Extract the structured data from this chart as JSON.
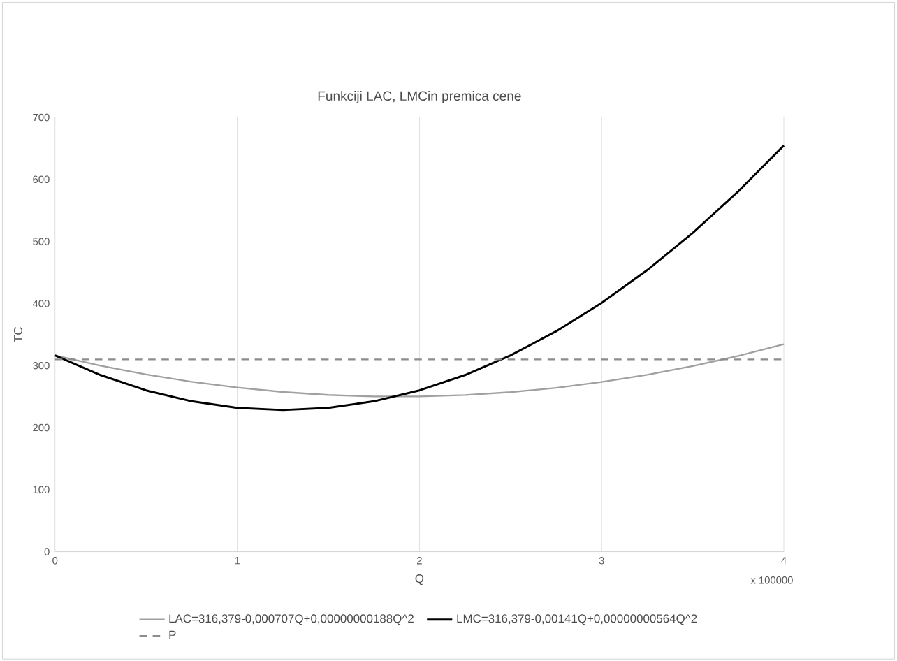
{
  "chart_data": {
    "type": "line",
    "title": "Funkciji LAC, LMCin premica cene",
    "xlabel": "Q",
    "ylabel": "TC",
    "annotations": [
      "x 100000"
    ],
    "xlim": [
      0,
      4
    ],
    "xticks": [
      0,
      1,
      2,
      3,
      4
    ],
    "ylim": [
      0,
      700
    ],
    "yticks": [
      0,
      100,
      200,
      300,
      400,
      500,
      600,
      700
    ],
    "grid": "x",
    "legend": "bottom",
    "marker": "none",
    "series": [
      {
        "name": "LAC=316,379-0,000707Q+0,00000000188Q^2",
        "color": "#a0a0a0",
        "line_style": "solid",
        "x": [
          0,
          0.25,
          0.5,
          0.75,
          1,
          1.25,
          1.5,
          1.75,
          2,
          2.25,
          2.5,
          2.75,
          3,
          3.25,
          3.5,
          3.75,
          4
        ],
        "values": [
          316.4,
          299.9,
          285.7,
          273.9,
          264.5,
          257.4,
          252.6,
          250.2,
          250.2,
          252.5,
          257.1,
          264.1,
          273.5,
          285.2,
          299.2,
          315.6,
          334.4
        ]
      },
      {
        "name": "LMC=316,379-0,00141Q+0,00000000564Q^2",
        "color": "#000000",
        "line_style": "solid",
        "x": [
          0,
          0.25,
          0.5,
          0.75,
          1,
          1.25,
          1.5,
          1.75,
          2,
          2.25,
          2.5,
          2.75,
          3,
          3.25,
          3.5,
          3.75,
          4
        ],
        "values": [
          316.4,
          284.7,
          260.0,
          242.4,
          231.8,
          228.3,
          231.8,
          242.4,
          260.0,
          284.7,
          316.4,
          355.2,
          401.0,
          453.9,
          513.8,
          580.8,
          654.8
        ]
      },
      {
        "name": "P",
        "color": "#8c8c8c",
        "line_style": "dashed",
        "x": [
          0,
          4
        ],
        "values": [
          310,
          310
        ]
      }
    ]
  }
}
